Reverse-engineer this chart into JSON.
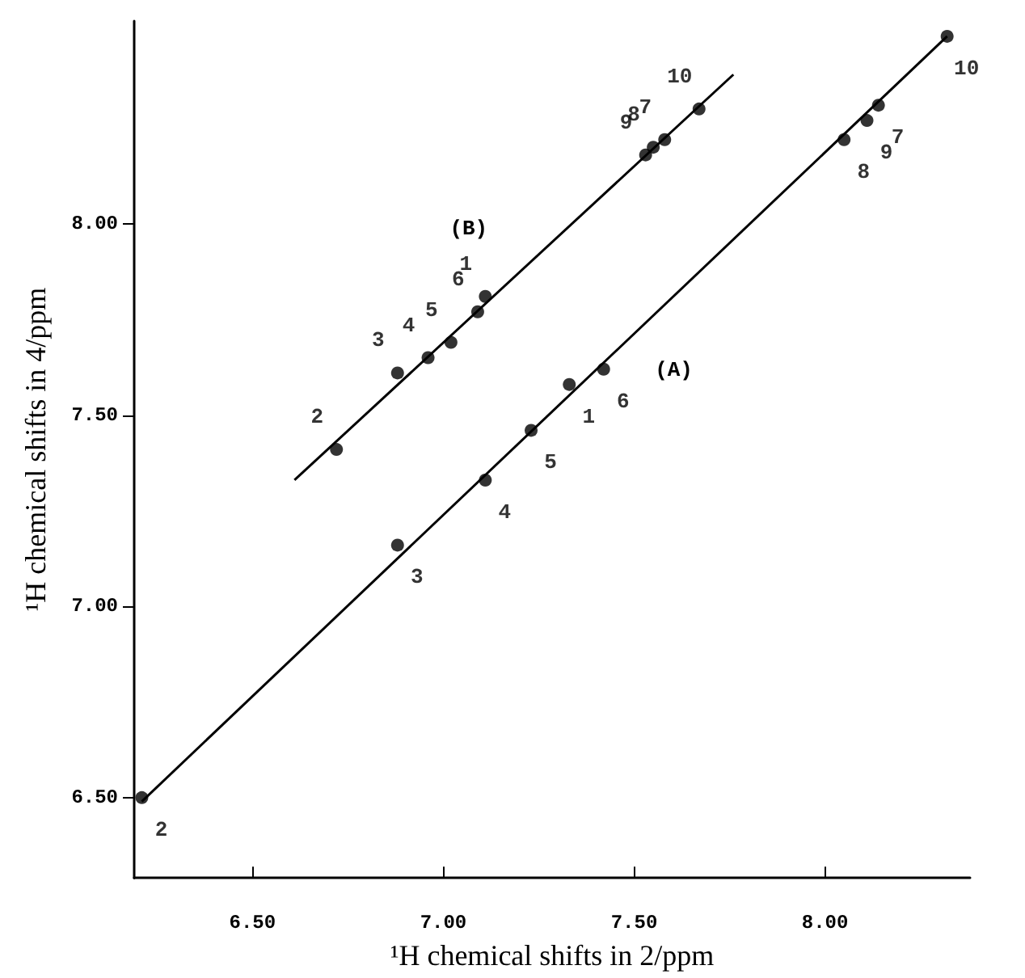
{
  "chart_data": {
    "type": "scatter",
    "xlabel": "¹H chemical shifts in 2/ppm",
    "ylabel": "¹H chemical shifts in 4/ppm",
    "xlim": [
      6.19,
      8.38
    ],
    "ylim": [
      6.29,
      8.53
    ],
    "xticks": [
      {
        "value": 6.5,
        "label": "6.50"
      },
      {
        "value": 7,
        "label": "7.00"
      },
      {
        "value": 7.5,
        "label": "7.50"
      },
      {
        "value": 8,
        "label": "8.00"
      }
    ],
    "yticks": [
      {
        "value": 6.5,
        "label": "6.50"
      },
      {
        "value": 7,
        "label": "7.00"
      },
      {
        "value": 7.5,
        "label": "7.50"
      },
      {
        "value": 8,
        "label": "8.00"
      }
    ],
    "grid": false,
    "legend": false,
    "marker": "circle",
    "series": [
      {
        "color": "#000000",
        "x": [
          6.21,
          6.88,
          7.11,
          7.23,
          7.33,
          7.42,
          8.05,
          8.11,
          8.14,
          8.32
        ],
        "values": [
          6.5,
          7.16,
          7.33,
          7.46,
          7.58,
          7.62,
          8.22,
          8.27,
          8.31,
          8.49
        ]
      },
      {
        "color": "#000000",
        "x": [
          6.72,
          6.88,
          6.96,
          7.02,
          7.09,
          7.11,
          7.53,
          7.55,
          7.58,
          7.67
        ],
        "values": [
          7.41,
          7.61,
          7.65,
          7.69,
          7.77,
          7.81,
          8.18,
          8.2,
          8.22,
          8.3
        ]
      },
      {
        "type": "line",
        "name": "(A)",
        "color": "#000000",
        "marker": "none",
        "x": [
          6.21,
          8.32
        ],
        "values": [
          6.49,
          8.49
        ]
      },
      {
        "type": "line",
        "name": "(B)",
        "color": "#000000",
        "marker": "none",
        "x": [
          6.61,
          7.76
        ],
        "values": [
          7.33,
          8.39
        ]
      }
    ],
    "annotations": [
      {
        "text": "2",
        "x": 6.21,
        "y": 6.5
      },
      {
        "text": "3",
        "x": 6.88,
        "y": 7.16
      },
      {
        "text": "4",
        "x": 7.11,
        "y": 7.33
      },
      {
        "text": "5",
        "x": 7.23,
        "y": 7.46
      },
      {
        "text": "1",
        "x": 7.33,
        "y": 7.58
      },
      {
        "text": "6",
        "x": 7.42,
        "y": 7.62
      },
      {
        "text": "8",
        "x": 8.05,
        "y": 8.22
      },
      {
        "text": "9",
        "x": 8.11,
        "y": 8.27
      },
      {
        "text": "7",
        "x": 8.14,
        "y": 8.31
      },
      {
        "text": "10",
        "x": 8.32,
        "y": 8.49
      },
      {
        "text": "2",
        "x": 6.72,
        "y": 7.41
      },
      {
        "text": "3",
        "x": 6.88,
        "y": 7.61
      },
      {
        "text": "4",
        "x": 6.96,
        "y": 7.65
      },
      {
        "text": "5",
        "x": 7.02,
        "y": 7.69
      },
      {
        "text": "6",
        "x": 7.09,
        "y": 7.77
      },
      {
        "text": "1",
        "x": 7.11,
        "y": 7.81
      },
      {
        "text": "9",
        "x": 7.53,
        "y": 8.18
      },
      {
        "text": "8",
        "x": 7.55,
        "y": 8.2
      },
      {
        "text": "7",
        "x": 7.58,
        "y": 8.22
      },
      {
        "text": "10",
        "x": 7.67,
        "y": 8.3
      }
    ]
  }
}
